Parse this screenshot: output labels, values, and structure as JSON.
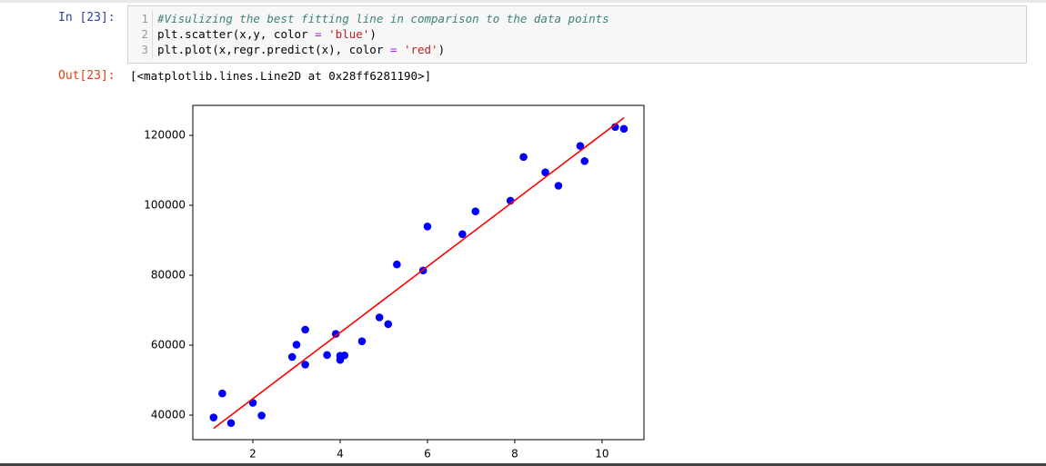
{
  "cell": {
    "in_prompt": "In [23]:",
    "line_numbers": [
      "1",
      "2",
      "3"
    ],
    "code_lines": [
      [
        {
          "text": "#Visulizing the best fitting line in comparison to the data points",
          "color": "#408080",
          "italic": true
        }
      ],
      [
        {
          "text": "plt.scatter(x,y, color ",
          "color": "#000000"
        },
        {
          "text": "=",
          "color": "#aa22ff"
        },
        {
          "text": " ",
          "color": "#000000"
        },
        {
          "text": "'blue'",
          "color": "#ba2121"
        },
        {
          "text": ")",
          "color": "#000000"
        }
      ],
      [
        {
          "text": "plt.plot(x,regr.predict(x), color ",
          "color": "#000000"
        },
        {
          "text": "=",
          "color": "#aa22ff"
        },
        {
          "text": " ",
          "color": "#000000"
        },
        {
          "text": "'red'",
          "color": "#ba2121"
        },
        {
          "text": ")",
          "color": "#000000"
        }
      ]
    ],
    "out_prompt": "Out[23]:",
    "output_text": "[<matplotlib.lines.Line2D at 0x28ff6281190>]"
  },
  "chart_data": {
    "type": "scatter",
    "x": [
      1.1,
      1.3,
      1.5,
      2.0,
      2.2,
      2.9,
      3.0,
      3.2,
      3.2,
      3.7,
      3.9,
      4.0,
      4.0,
      4.1,
      4.5,
      4.9,
      5.1,
      5.3,
      5.9,
      6.0,
      6.8,
      7.1,
      7.9,
      8.2,
      8.7,
      9.0,
      9.5,
      9.6,
      10.3,
      10.5
    ],
    "series": [
      {
        "type": "scatter",
        "color": "blue",
        "values": [
          39343,
          46205,
          37731,
          43525,
          39891,
          56642,
          60150,
          54445,
          64445,
          57189,
          63218,
          55794,
          56957,
          57081,
          61111,
          67938,
          66029,
          83088,
          81363,
          93940,
          91738,
          98273,
          101302,
          113812,
          109431,
          105582,
          116969,
          112635,
          122391,
          121872
        ]
      },
      {
        "type": "line",
        "color": "red",
        "values": [
          36187,
          38077,
          39967,
          44692,
          46582,
          53197,
          54142,
          56032,
          56032,
          60757,
          62647,
          63592,
          63592,
          64537,
          68317,
          72097,
          73987,
          75877,
          81547,
          82492,
          90052,
          92887,
          100447,
          103282,
          108007,
          110842,
          115567,
          116512,
          123127,
          125017
        ]
      }
    ],
    "xlim": [
      0.625,
      10.96
    ],
    "ylim": [
      32987,
      128571
    ],
    "xticks": [
      2,
      4,
      6,
      8,
      10
    ],
    "yticks": [
      40000,
      60000,
      80000,
      100000,
      120000
    ]
  }
}
